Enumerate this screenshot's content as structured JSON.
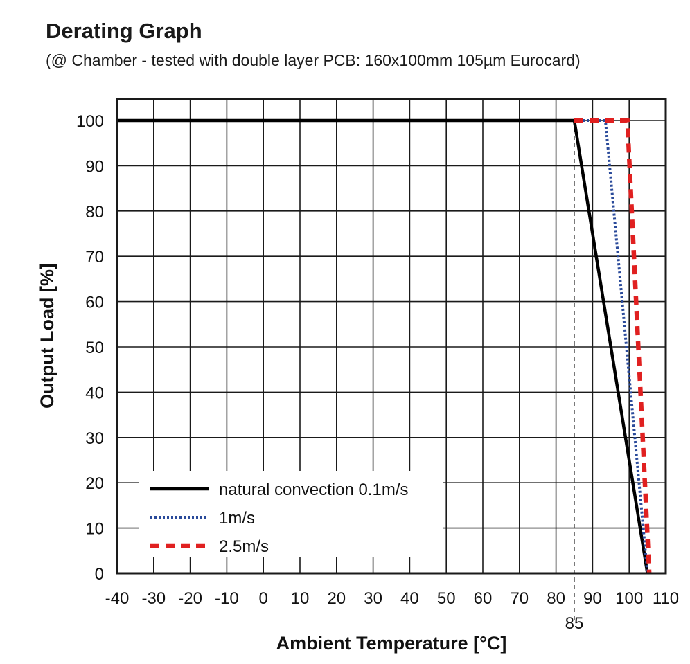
{
  "chart_data": {
    "type": "line",
    "title": "Derating Graph",
    "subtitle": "(@ Chamber - tested with double layer PCB: 160x100mm 105µm Eurocard)",
    "xlabel": "Ambient Temperature [°C]",
    "ylabel": "Output Load [%]",
    "xlim": [
      -40,
      110
    ],
    "ylim": [
      0,
      100
    ],
    "x_ticks": [
      -40,
      -30,
      -20,
      -10,
      0,
      10,
      20,
      30,
      40,
      50,
      60,
      70,
      80,
      90,
      100,
      110
    ],
    "y_ticks": [
      0,
      10,
      20,
      30,
      40,
      50,
      60,
      70,
      80,
      90,
      100
    ],
    "grid": true,
    "legend_position": "bottom-left",
    "marker": {
      "x": 85,
      "label": "85"
    },
    "series": [
      {
        "name": "natural convection 0.1m/s",
        "style": "solid",
        "color": "#000000",
        "points": [
          [
            -40,
            100
          ],
          [
            85,
            100
          ],
          [
            105,
            0
          ]
        ]
      },
      {
        "name": "1m/s",
        "style": "dotted",
        "color": "#2a4a9a",
        "points": [
          [
            85,
            100
          ],
          [
            93.5,
            100
          ],
          [
            105,
            0
          ]
        ]
      },
      {
        "name": "2.5m/s",
        "style": "dashed",
        "color": "#e02020",
        "points": [
          [
            85,
            100
          ],
          [
            99.5,
            100
          ],
          [
            105.5,
            0
          ]
        ]
      }
    ]
  }
}
